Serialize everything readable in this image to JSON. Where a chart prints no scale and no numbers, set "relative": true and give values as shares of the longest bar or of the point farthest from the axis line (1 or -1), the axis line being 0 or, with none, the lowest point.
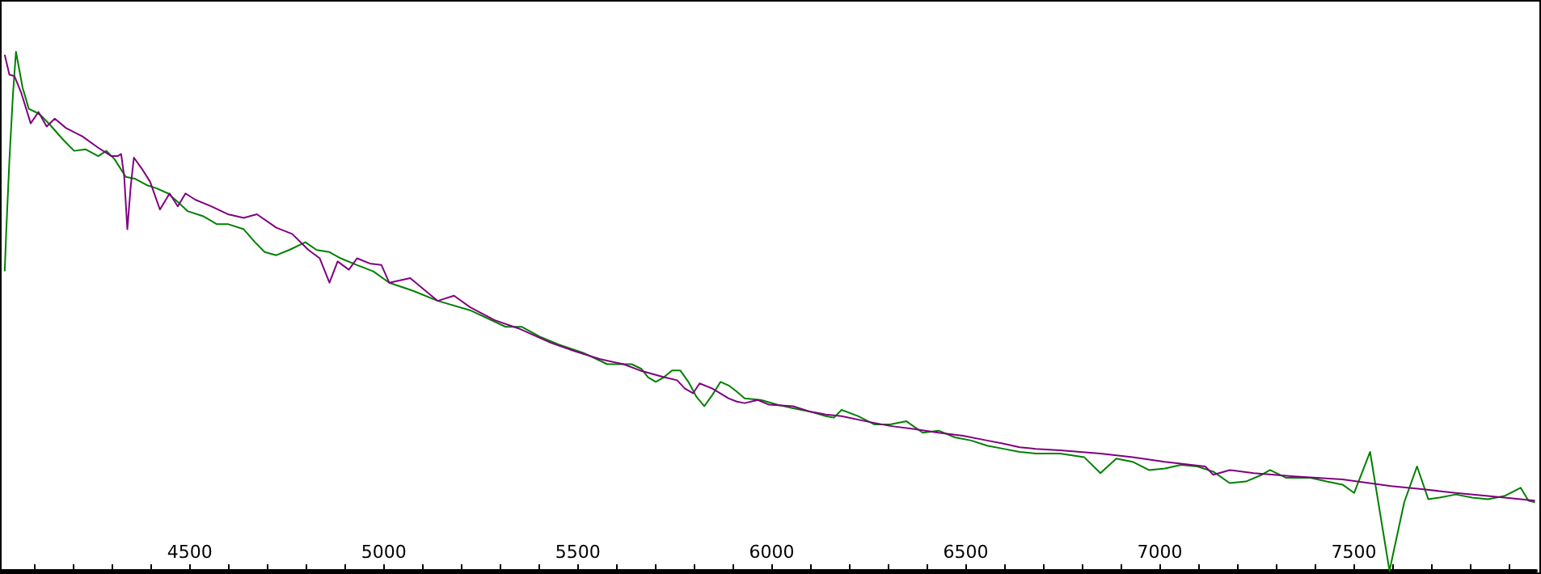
{
  "chart_data": {
    "type": "line",
    "relative": true,
    "marker": "none",
    "line_style": "solid",
    "xlim": [
      4015,
      7970
    ],
    "xticks": [
      {
        "value": 4100,
        "label": null
      },
      {
        "value": 4200,
        "label": null
      },
      {
        "value": 4300,
        "label": null
      },
      {
        "value": 4400,
        "label": null
      },
      4500,
      {
        "value": 4600,
        "label": null
      },
      {
        "value": 4700,
        "label": null
      },
      {
        "value": 4800,
        "label": null
      },
      {
        "value": 4900,
        "label": null
      },
      5000,
      {
        "value": 5100,
        "label": null
      },
      {
        "value": 5200,
        "label": null
      },
      {
        "value": 5300,
        "label": null
      },
      {
        "value": 5400,
        "label": null
      },
      5500,
      {
        "value": 5600,
        "label": null
      },
      {
        "value": 5700,
        "label": null
      },
      {
        "value": 5800,
        "label": null
      },
      {
        "value": 5900,
        "label": null
      },
      6000,
      {
        "value": 6100,
        "label": null
      },
      {
        "value": 6200,
        "label": null
      },
      {
        "value": 6300,
        "label": null
      },
      {
        "value": 6400,
        "label": null
      },
      6500,
      {
        "value": 6600,
        "label": null
      },
      {
        "value": 6700,
        "label": null
      },
      {
        "value": 6800,
        "label": null
      },
      {
        "value": 6900,
        "label": null
      },
      7000,
      {
        "value": 7100,
        "label": null
      },
      {
        "value": 7200,
        "label": null
      },
      {
        "value": 7300,
        "label": null
      },
      {
        "value": 7400,
        "label": null
      },
      7500,
      {
        "value": 7600,
        "label": null
      },
      {
        "value": 7700,
        "label": null
      },
      {
        "value": 7800,
        "label": null
      },
      {
        "value": 7900,
        "label": null
      }
    ],
    "series": [
      {
        "color": "#008000",
        "x": [
          4023,
          4027,
          4035,
          4044,
          4052,
          4056,
          4069,
          4085,
          4102,
          4115,
          4140,
          4173,
          4202,
          4231,
          4264,
          4285,
          4306,
          4335,
          4360,
          4389,
          4414,
          4444,
          4473,
          4494,
          4535,
          4569,
          4598,
          4639,
          4668,
          4693,
          4723,
          4756,
          4798,
          4827,
          4860,
          4889,
          4931,
          4973,
          5014,
          5077,
          5139,
          5222,
          5314,
          5356,
          5402,
          5451,
          5514,
          5576,
          5639,
          5664,
          5681,
          5701,
          5722,
          5743,
          5764,
          5785,
          5806,
          5826,
          5847,
          5868,
          5889,
          5910,
          5930,
          5972,
          6014,
          6055,
          6097,
          6139,
          6160,
          6180,
          6222,
          6264,
          6305,
          6347,
          6389,
          6430,
          6472,
          6514,
          6555,
          6597,
          6639,
          6680,
          6743,
          6805,
          6847,
          6888,
          6930,
          6972,
          7013,
          7055,
          7097,
          7138,
          7180,
          7222,
          7263,
          7284,
          7326,
          7388,
          7430,
          7471,
          7501,
          7542,
          7592,
          7630,
          7663,
          7692,
          7721,
          7763,
          7805,
          7846,
          7888,
          7930,
          7950,
          7967
        ],
        "values": [
          0.577,
          0.655,
          0.79,
          0.915,
          1,
          0.984,
          0.931,
          0.89,
          0.884,
          0.878,
          0.859,
          0.831,
          0.809,
          0.812,
          0.799,
          0.809,
          0.793,
          0.759,
          0.755,
          0.743,
          0.737,
          0.727,
          0.708,
          0.693,
          0.683,
          0.668,
          0.668,
          0.658,
          0.633,
          0.614,
          0.608,
          0.618,
          0.633,
          0.618,
          0.614,
          0.602,
          0.589,
          0.577,
          0.555,
          0.539,
          0.52,
          0.502,
          0.47,
          0.47,
          0.451,
          0.436,
          0.42,
          0.398,
          0.398,
          0.389,
          0.373,
          0.364,
          0.373,
          0.386,
          0.386,
          0.364,
          0.335,
          0.317,
          0.339,
          0.364,
          0.357,
          0.345,
          0.332,
          0.329,
          0.32,
          0.313,
          0.307,
          0.298,
          0.295,
          0.31,
          0.298,
          0.282,
          0.282,
          0.288,
          0.266,
          0.27,
          0.257,
          0.251,
          0.241,
          0.235,
          0.229,
          0.226,
          0.226,
          0.219,
          0.188,
          0.216,
          0.21,
          0.194,
          0.197,
          0.204,
          0.201,
          0.191,
          0.169,
          0.172,
          0.185,
          0.194,
          0.179,
          0.179,
          0.172,
          0.166,
          0.15,
          0.229,
          0,
          0.132,
          0.201,
          0.138,
          0.141,
          0.147,
          0.141,
          0.138,
          0.144,
          0.16,
          0.135,
          0.132
        ]
      },
      {
        "color": "#800080",
        "x": [
          4023,
          4035,
          4048,
          4065,
          4090,
          4110,
          4131,
          4152,
          4181,
          4223,
          4264,
          4298,
          4314,
          4323,
          4331,
          4339,
          4348,
          4356,
          4377,
          4398,
          4423,
          4448,
          4469,
          4489,
          4514,
          4556,
          4598,
          4639,
          4673,
          4723,
          4764,
          4806,
          4835,
          4860,
          4881,
          4910,
          4931,
          4964,
          4994,
          5014,
          5068,
          5139,
          5181,
          5222,
          5285,
          5347,
          5431,
          5493,
          5556,
          5618,
          5660,
          5722,
          5756,
          5776,
          5797,
          5814,
          5847,
          5889,
          5910,
          5930,
          5964,
          5993,
          6055,
          6097,
          6139,
          6180,
          6243,
          6305,
          6368,
          6430,
          6493,
          6555,
          6597,
          6639,
          6680,
          6743,
          6847,
          6930,
          7013,
          7117,
          7138,
          7180,
          7242,
          7346,
          7471,
          7596,
          7680,
          7763,
          7846,
          7967
        ],
        "values": [
          0.994,
          0.956,
          0.953,
          0.922,
          0.862,
          0.884,
          0.856,
          0.871,
          0.853,
          0.837,
          0.815,
          0.799,
          0.799,
          0.803,
          0.759,
          0.658,
          0.743,
          0.796,
          0.774,
          0.749,
          0.696,
          0.727,
          0.702,
          0.727,
          0.715,
          0.702,
          0.687,
          0.68,
          0.687,
          0.661,
          0.649,
          0.618,
          0.602,
          0.555,
          0.596,
          0.58,
          0.602,
          0.592,
          0.589,
          0.555,
          0.564,
          0.52,
          0.53,
          0.508,
          0.483,
          0.467,
          0.439,
          0.423,
          0.408,
          0.398,
          0.386,
          0.373,
          0.367,
          0.351,
          0.342,
          0.361,
          0.351,
          0.332,
          0.326,
          0.323,
          0.329,
          0.32,
          0.317,
          0.307,
          0.301,
          0.298,
          0.288,
          0.279,
          0.273,
          0.266,
          0.26,
          0.251,
          0.245,
          0.238,
          0.235,
          0.232,
          0.226,
          0.219,
          0.21,
          0.201,
          0.185,
          0.194,
          0.188,
          0.182,
          0.176,
          0.163,
          0.157,
          0.15,
          0.144,
          0.135
        ]
      }
    ]
  }
}
